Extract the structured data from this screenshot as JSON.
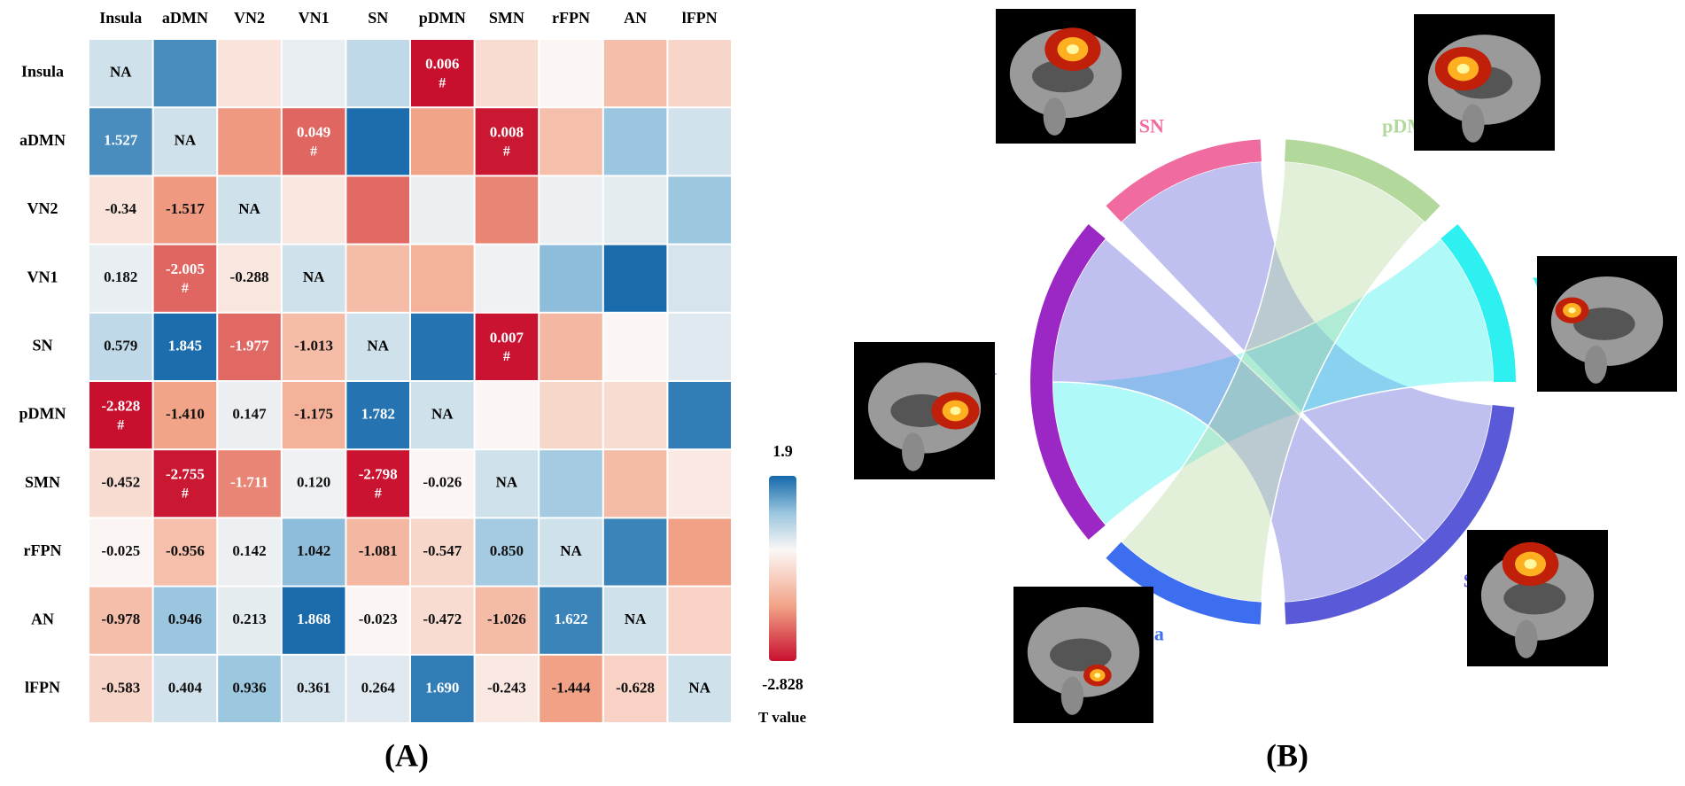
{
  "chart_data": [
    {
      "type": "heatmap",
      "labels": [
        "Insula",
        "aDMN",
        "VN2",
        "VN1",
        "SN",
        "pDMN",
        "SMN",
        "rFPN",
        "AN",
        "lFPN"
      ],
      "values": [
        [
          null,
          null,
          null,
          null,
          null,
          null,
          null,
          null,
          null,
          null
        ],
        [
          1.527,
          null,
          null,
          null,
          null,
          null,
          null,
          null,
          null,
          null
        ],
        [
          -0.34,
          -1.517,
          null,
          null,
          null,
          null,
          null,
          null,
          null,
          null
        ],
        [
          0.182,
          -2.005,
          -0.288,
          null,
          null,
          null,
          null,
          null,
          null,
          null
        ],
        [
          0.579,
          1.845,
          -1.977,
          -1.013,
          null,
          null,
          null,
          null,
          null,
          null
        ],
        [
          -2.828,
          -1.41,
          0.147,
          -1.175,
          1.782,
          null,
          null,
          null,
          null,
          null
        ],
        [
          -0.452,
          -2.755,
          -1.711,
          0.12,
          -2.798,
          -0.026,
          null,
          null,
          null,
          null
        ],
        [
          -0.025,
          -0.956,
          0.142,
          1.042,
          -1.081,
          -0.547,
          0.85,
          null,
          null,
          null
        ],
        [
          -0.978,
          0.946,
          0.213,
          1.868,
          -0.023,
          -0.472,
          -1.026,
          1.622,
          null,
          null
        ],
        [
          -0.583,
          0.404,
          0.936,
          0.361,
          0.264,
          1.69,
          -0.243,
          -1.444,
          -0.628,
          null
        ]
      ],
      "value_labels": [
        [
          null,
          null,
          null,
          null,
          null,
          null,
          null,
          null,
          null,
          null
        ],
        [
          "1.527",
          null,
          null,
          null,
          null,
          null,
          null,
          null,
          null,
          null
        ],
        [
          "-0.34",
          "-1.517",
          null,
          null,
          null,
          null,
          null,
          null,
          null,
          null
        ],
        [
          "0.182",
          "-2.005",
          "-0.288",
          null,
          null,
          null,
          null,
          null,
          null,
          null
        ],
        [
          "0.579",
          "1.845",
          "-1.977",
          "-1.013",
          null,
          null,
          null,
          null,
          null,
          null
        ],
        [
          "-2.828",
          "-1.410",
          "0.147",
          "-1.175",
          "1.782",
          null,
          null,
          null,
          null,
          null
        ],
        [
          "-0.452",
          "-2.755",
          "-1.711",
          "0.120",
          "-2.798",
          "-0.026",
          null,
          null,
          null,
          null
        ],
        [
          "-0.025",
          "-0.956",
          "0.142",
          "1.042",
          "-1.081",
          "-0.547",
          "0.850",
          null,
          null,
          null
        ],
        [
          "-0.978",
          "0.946",
          "0.213",
          "1.868",
          "-0.023",
          "-0.472",
          "-1.026",
          "1.622",
          null,
          null
        ],
        [
          "-0.583",
          "0.404",
          "0.936",
          "0.361",
          "0.264",
          "1.690",
          "-0.243",
          "-1.444",
          "-0.628",
          null
        ]
      ],
      "p_values": [
        [
          null,
          null,
          null,
          null,
          null,
          0.006,
          null,
          null,
          null,
          null
        ],
        [
          null,
          null,
          null,
          0.049,
          null,
          null,
          0.008,
          null,
          null,
          null
        ],
        [
          null,
          null,
          null,
          null,
          null,
          null,
          null,
          null,
          null,
          null
        ],
        [
          null,
          null,
          null,
          null,
          null,
          null,
          null,
          null,
          null,
          null
        ],
        [
          null,
          null,
          null,
          null,
          null,
          null,
          0.007,
          null,
          null,
          null
        ],
        [
          null,
          null,
          null,
          null,
          null,
          null,
          null,
          null,
          null,
          null
        ],
        [
          null,
          null,
          null,
          null,
          null,
          null,
          null,
          null,
          null,
          null
        ],
        [
          null,
          null,
          null,
          null,
          null,
          null,
          null,
          null,
          null,
          null
        ],
        [
          null,
          null,
          null,
          null,
          null,
          null,
          null,
          null,
          null,
          null
        ],
        [
          null,
          null,
          null,
          null,
          null,
          null,
          null,
          null,
          null,
          null
        ]
      ],
      "diagonal_label": "NA",
      "significance_marker": "#",
      "colormap": [
        "#c8102e",
        "#f2a488",
        "#fbf7f5",
        "#9ac6df",
        "#1468aa"
      ],
      "clim": [
        -2.828,
        1.9
      ],
      "cticks": [
        1.9,
        -2.828
      ],
      "colorbar_label": "T value",
      "panel_label": "(A)"
    },
    {
      "type": "chord",
      "nodes": [
        {
          "name": "pDMN",
          "color": "#b3d89c"
        },
        {
          "name": "VN1",
          "color": "#2ef0f0"
        },
        {
          "name": "SMN",
          "color": "#5a5ad8"
        },
        {
          "name": "Insula",
          "color": "#3d6ef0"
        },
        {
          "name": "aDMN",
          "color": "#9b27c4"
        },
        {
          "name": "SN",
          "color": "#f06ba0"
        }
      ],
      "links": [
        {
          "source": "SN",
          "target": "SMN"
        },
        {
          "source": "aDMN",
          "target": "VN1"
        },
        {
          "source": "aDMN",
          "target": "SMN"
        },
        {
          "source": "Insula",
          "target": "pDMN"
        }
      ],
      "panel_label": "(B)"
    }
  ]
}
